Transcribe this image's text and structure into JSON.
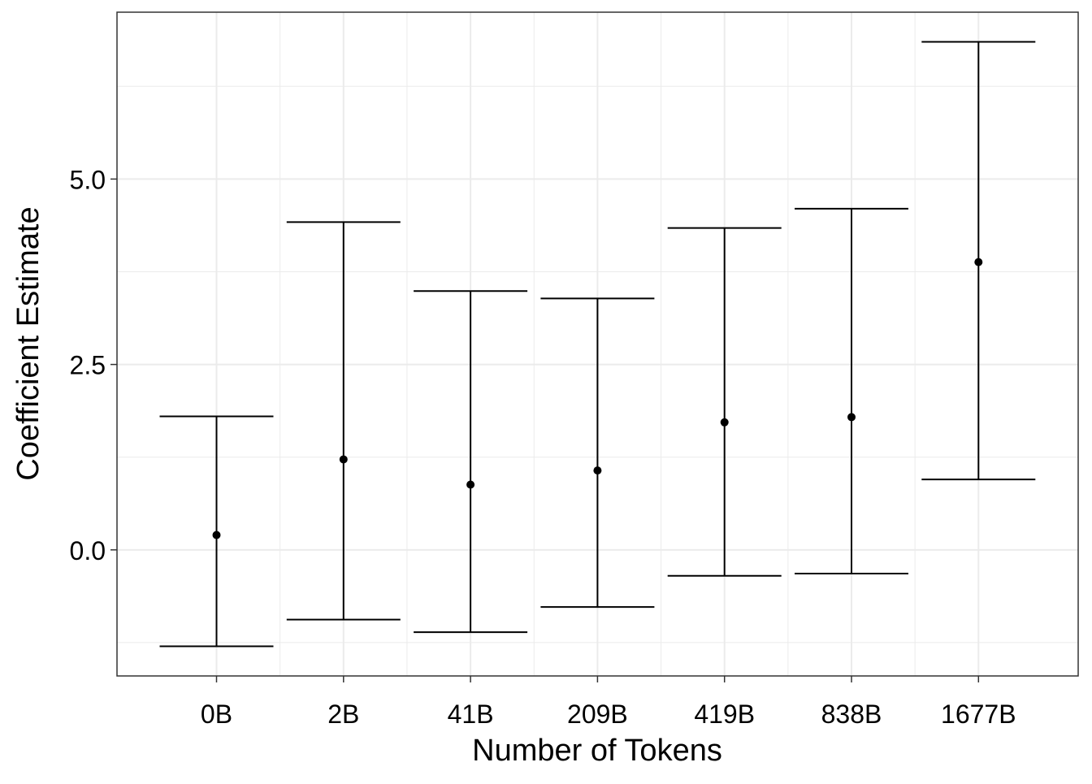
{
  "chart_data": {
    "type": "errorbar",
    "title": "",
    "xlabel": "Number of Tokens",
    "ylabel": "Coefficient Estimate",
    "categories": [
      "0B",
      "2B",
      "41B",
      "209B",
      "419B",
      "838B",
      "1677B"
    ],
    "estimate": [
      0.2,
      1.22,
      0.88,
      1.07,
      1.72,
      1.79,
      3.88
    ],
    "lower": [
      -1.3,
      -0.94,
      -1.11,
      -0.77,
      -0.35,
      -0.32,
      0.95
    ],
    "upper": [
      1.8,
      4.42,
      3.49,
      3.39,
      4.34,
      4.6,
      6.85
    ],
    "y_ticks": [
      0.0,
      2.5,
      5.0
    ],
    "y_tick_labels": [
      "0.0",
      "2.5",
      "5.0"
    ],
    "ylim": [
      -1.7,
      7.25
    ],
    "grid": true,
    "colors": {
      "mark": "#000000",
      "grid": "#ebebeb",
      "panel_border": "#333333",
      "background": "#ffffff"
    }
  }
}
